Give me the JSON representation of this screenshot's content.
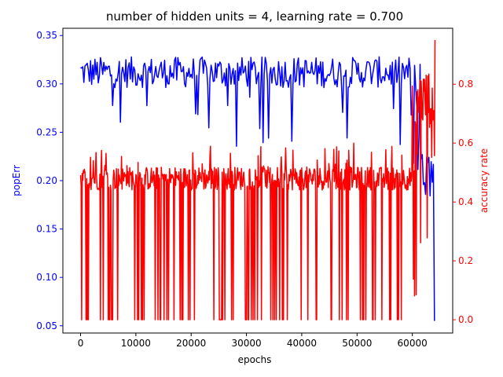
{
  "chart_data": {
    "type": "line",
    "title": "number of hidden units = 4, learning rate = 0.700",
    "xlabel": "epochs",
    "ylabel_left": "popErr",
    "ylabel_right": "accuracy rate",
    "xlim": [
      -3200,
      67300
    ],
    "ylim_left": [
      0.0425,
      0.3575
    ],
    "ylim_right": [
      -0.045,
      0.99
    ],
    "x_ticks": [
      0,
      10000,
      20000,
      30000,
      40000,
      50000,
      60000
    ],
    "y_left_ticks": [
      0.05,
      0.1,
      0.15,
      0.2,
      0.25,
      0.3,
      0.35
    ],
    "y_right_ticks": [
      0.0,
      0.2,
      0.4,
      0.6,
      0.8
    ],
    "grid": false,
    "legend": "none",
    "series": [
      {
        "axis": "left",
        "color": "#0000ff",
        "x_start": 0,
        "x_step": 200,
        "points": 321,
        "mean": 0.312,
        "spread": 0.016,
        "spike_min": 0.235,
        "end_value": 0.055
      },
      {
        "axis": "right",
        "color": "#ff0000",
        "x_start": 0,
        "x_step": 100,
        "points": 642,
        "base": 0.47,
        "zero_value": 0.0,
        "peak": 0.6,
        "late_rise": 0.85,
        "end_value": 0.95
      }
    ],
    "axis_colors": {
      "left": "#0000ff",
      "right": "#ff0000",
      "x": "#000000"
    }
  }
}
